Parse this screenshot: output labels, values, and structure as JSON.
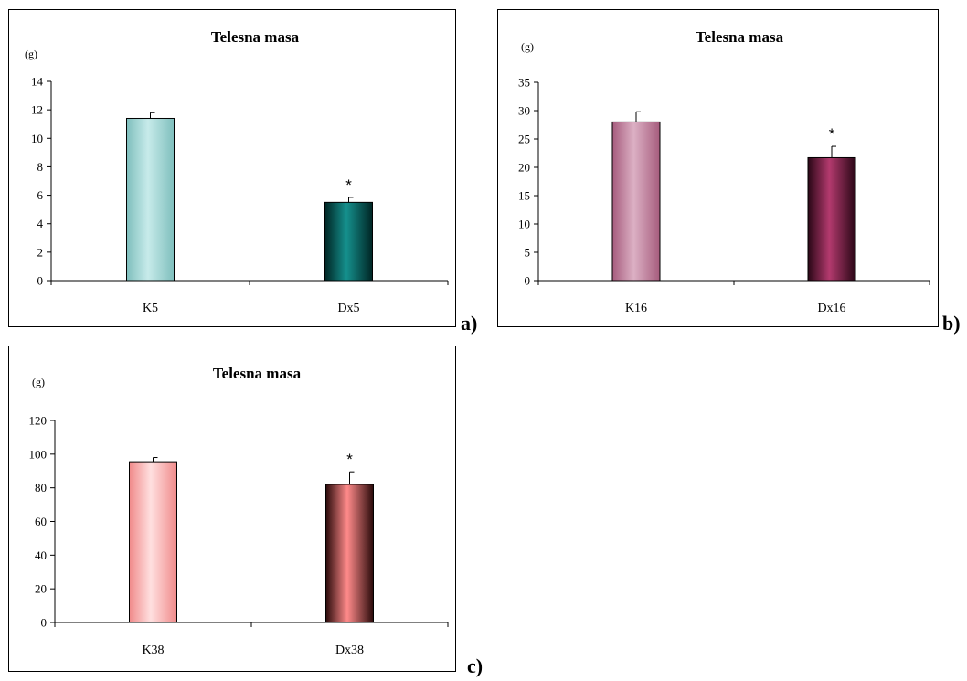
{
  "chart_data": [
    {
      "id": "a",
      "type": "bar",
      "panel_label": "a)",
      "title": "Telesna masa",
      "unit": "(g)",
      "categories": [
        "K5",
        "Dx5"
      ],
      "values": [
        11.4,
        5.5
      ],
      "errors": [
        0.4,
        0.35
      ],
      "significance": [
        "",
        "*"
      ],
      "ylim": [
        0,
        14
      ],
      "yticks": [
        0,
        2,
        4,
        6,
        8,
        10,
        12,
        14
      ],
      "colors": [
        {
          "light": "#c7ebea",
          "dark": "#7fbfbd"
        },
        {
          "light": "#15908d",
          "dark": "#002524"
        }
      ]
    },
    {
      "id": "b",
      "type": "bar",
      "panel_label": "b)",
      "title": "Telesna masa",
      "unit": "(g)",
      "categories": [
        "K16",
        "Dx16"
      ],
      "values": [
        28,
        21.7
      ],
      "errors": [
        1.8,
        2.0
      ],
      "significance": [
        "",
        "*"
      ],
      "ylim": [
        0,
        35
      ],
      "yticks": [
        0,
        5,
        10,
        15,
        20,
        25,
        30,
        35
      ],
      "colors": [
        {
          "light": "#dcb0c4",
          "dark": "#a65c7d"
        },
        {
          "light": "#b33a6e",
          "dark": "#2a0716"
        }
      ]
    },
    {
      "id": "c",
      "type": "bar",
      "panel_label": "c)",
      "title": "Telesna masa",
      "unit": "(g)",
      "categories": [
        "K38",
        "Dx38"
      ],
      "values": [
        95.5,
        82
      ],
      "errors": [
        2.5,
        7.5
      ],
      "significance": [
        "",
        "*"
      ],
      "ylim": [
        0,
        120
      ],
      "yticks": [
        0,
        20,
        40,
        60,
        80,
        100,
        120
      ],
      "colors": [
        {
          "light": "#ffe0e0",
          "dark": "#f08a8a"
        },
        {
          "light": "#ff8a8a",
          "dark": "#2a0a0a"
        }
      ]
    }
  ]
}
